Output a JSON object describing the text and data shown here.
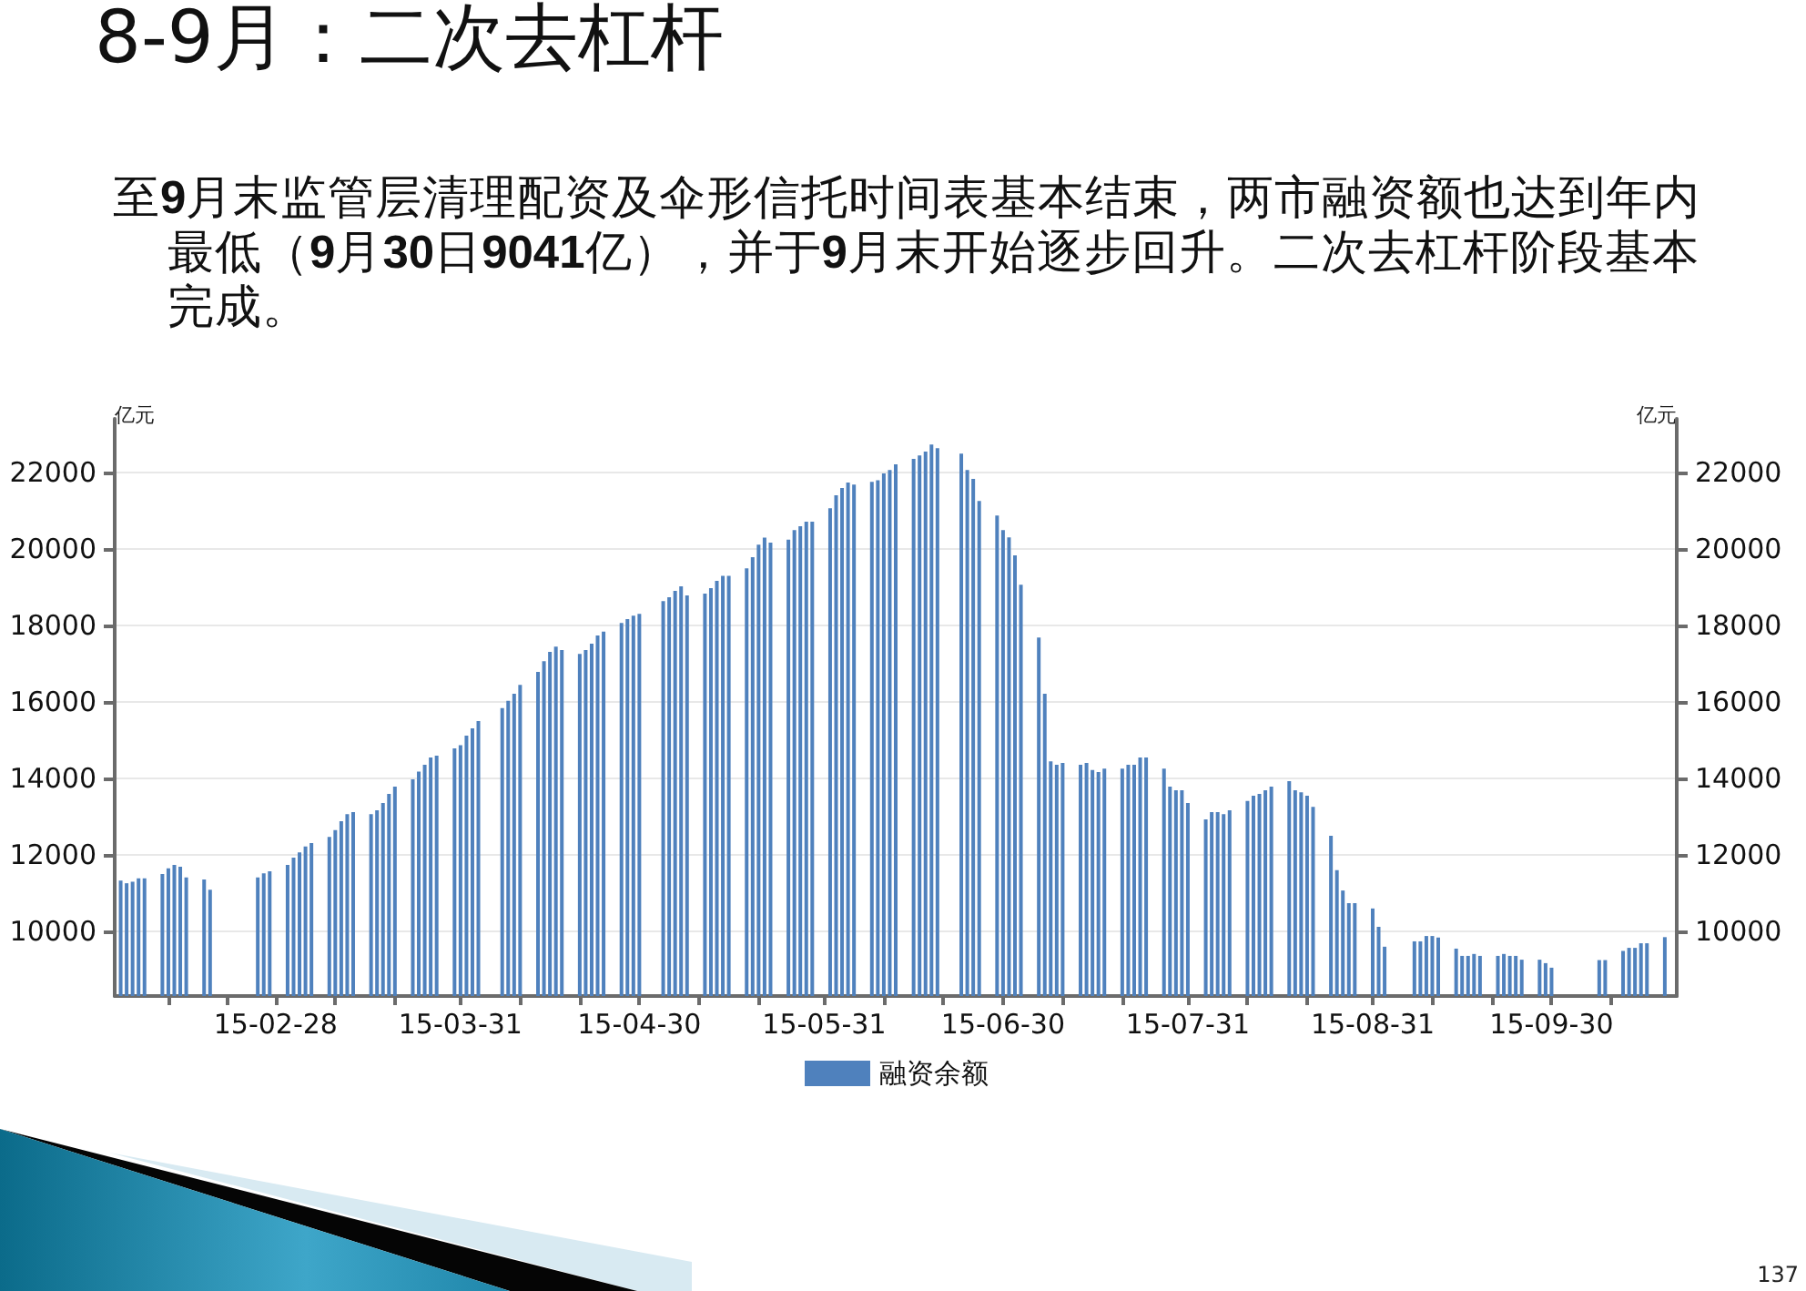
{
  "chart_data": {
    "type": "bar",
    "title": "8-9月：二次去杠杆",
    "subtitle": "至9月末监管层清理配资及伞形信托时间表基本结束，两市融资额也达到年内最低（9月30日9041亿），并于9月末开始逐步回升。二次去杠杆阶段基本完成。",
    "ylabel": "亿元",
    "y2label": "亿元",
    "annotations": [
      "137"
    ],
    "x": [
      "--02-02",
      "--02-03",
      "--02-04",
      "--02-05",
      "--02-06",
      "--02-09",
      "--02-10",
      "--02-11",
      "--02-12",
      "--02-13",
      "--02-16",
      "--02-17",
      "--02-25",
      "--02-26",
      "--02-27",
      "--03-02",
      "--03-03",
      "--03-04",
      "--03-05",
      "--03-06",
      "--03-09",
      "--03-10",
      "--03-11",
      "--03-12",
      "--03-13",
      "--03-16",
      "--03-17",
      "--03-18",
      "--03-19",
      "--03-20",
      "--03-23",
      "--03-24",
      "--03-25",
      "--03-26",
      "--03-27",
      "--03-30",
      "--03-31",
      "--04-01",
      "--04-02",
      "--04-03",
      "--04-07",
      "--04-08",
      "--04-09",
      "--04-10",
      "--04-13",
      "--04-14",
      "--04-15",
      "--04-16",
      "--04-17",
      "--04-20",
      "--04-21",
      "--04-22",
      "--04-23",
      "--04-24",
      "--04-27",
      "--04-28",
      "--04-29",
      "--04-30",
      "--05-04",
      "--05-05",
      "--05-06",
      "--05-07",
      "--05-08",
      "--05-11",
      "--05-12",
      "--05-13",
      "--05-14",
      "--05-15",
      "--05-18",
      "--05-19",
      "--05-20",
      "--05-21",
      "--05-22",
      "--05-25",
      "--05-26",
      "--05-27",
      "--05-28",
      "--05-29",
      "--06-01",
      "--06-02",
      "--06-03",
      "--06-04",
      "--06-05",
      "--06-08",
      "--06-09",
      "--06-10",
      "--06-11",
      "--06-12",
      "--06-15",
      "--06-16",
      "--06-17",
      "--06-18",
      "--06-19",
      "--06-23",
      "--06-24",
      "--06-25",
      "--06-26",
      "--06-29",
      "--06-30",
      "--07-01",
      "--07-02",
      "--07-03",
      "--07-06",
      "--07-07",
      "--07-08",
      "--07-09",
      "--07-10",
      "--07-13",
      "--07-14",
      "--07-15",
      "--07-16",
      "--07-17",
      "--07-20",
      "--07-21",
      "--07-22",
      "--07-23",
      "--07-24",
      "--07-27",
      "--07-28",
      "--07-29",
      "--07-30",
      "--07-31",
      "--08-03",
      "--08-04",
      "--08-05",
      "--08-06",
      "--08-07",
      "--08-10",
      "--08-11",
      "--08-12",
      "--08-13",
      "--08-14",
      "--08-17",
      "--08-18",
      "--08-19",
      "--08-20",
      "--08-21",
      "--08-24",
      "--08-25",
      "--08-26",
      "--08-27",
      "--08-28",
      "--08-31",
      "--09-01",
      "--09-02",
      "--09-07",
      "--09-08",
      "--09-09",
      "--09-10",
      "--09-11",
      "--09-14",
      "--09-15",
      "--09-16",
      "--09-17",
      "--09-18",
      "--09-21",
      "--09-22",
      "--09-23",
      "--09-24",
      "--09-25",
      "--09-28",
      "--09-29",
      "--09-30",
      "--10-08",
      "--10-09",
      "--10-12",
      "--10-13",
      "--10-14",
      "--10-15",
      "--10-16",
      "--10-19"
    ],
    "series": [
      {
        "name": "融资余额",
        "color": "#4f81bd",
        "values": [
          11320,
          11250,
          11290,
          11380,
          11380,
          11490,
          11640,
          11730,
          11680,
          11400,
          11350,
          11080,
          11400,
          11510,
          11560,
          11730,
          11920,
          12060,
          12210,
          12300,
          12460,
          12640,
          12870,
          13060,
          13110,
          13060,
          13160,
          13350,
          13590,
          13780,
          13970,
          14170,
          14350,
          14540,
          14590,
          14780,
          14860,
          15110,
          15300,
          15490,
          15830,
          16020,
          16210,
          16440,
          16780,
          17060,
          17300,
          17440,
          17350,
          17250,
          17350,
          17520,
          17730,
          17830,
          18060,
          18160,
          18250,
          18300,
          18630,
          18730,
          18900,
          19020,
          18780,
          18830,
          18970,
          19160,
          19290,
          19290,
          19490,
          19780,
          20110,
          20290,
          20160,
          20240,
          20490,
          20590,
          20710,
          20710,
          21060,
          21400,
          21590,
          21730,
          21680,
          21750,
          21790,
          21970,
          22060,
          22210,
          22350,
          22440,
          22540,
          22730,
          22630,
          22490,
          22060,
          21830,
          21250,
          20870,
          20490,
          20300,
          19830,
          19060,
          17680,
          16210,
          14440,
          14350,
          14400,
          14350,
          14400,
          14210,
          14160,
          14250,
          14250,
          14350,
          14350,
          14540,
          14540,
          14250,
          13780,
          13680,
          13680,
          13350,
          12920,
          13110,
          13110,
          13060,
          13160,
          13400,
          13540,
          13590,
          13680,
          13780,
          13920,
          13680,
          13630,
          13540,
          13250,
          12490,
          11590,
          11060,
          10730,
          10730,
          10590,
          10110,
          9590,
          9730,
          9730,
          9870,
          9870,
          9830,
          9540,
          9350,
          9350,
          9400,
          9350,
          9350,
          9400,
          9350,
          9350,
          9250,
          9250,
          9160,
          9041,
          9240,
          9240,
          9480,
          9560,
          9560,
          9680,
          9680,
          9840
        ]
      }
    ],
    "xlim": [
      "--02-01",
      "--10-21"
    ],
    "xticks": [
      {
        "value": "--02-10",
        "label": null
      },
      {
        "value": "--02-20",
        "label": null
      },
      {
        "value": "--02-28",
        "label": "15-02-28"
      },
      {
        "value": "--03-10",
        "label": null
      },
      {
        "value": "--03-20",
        "label": null
      },
      {
        "value": "--03-31",
        "label": "15-03-31"
      },
      {
        "value": "--04-10",
        "label": null
      },
      {
        "value": "--04-20",
        "label": null
      },
      {
        "value": "--04-30",
        "label": "15-04-30"
      },
      {
        "value": "--05-10",
        "label": null
      },
      {
        "value": "--05-20",
        "label": null
      },
      {
        "value": "--05-31",
        "label": "15-05-31"
      },
      {
        "value": "--06-10",
        "label": null
      },
      {
        "value": "--06-20",
        "label": null
      },
      {
        "value": "--06-30",
        "label": "15-06-30"
      },
      {
        "value": "--07-10",
        "label": null
      },
      {
        "value": "--07-20",
        "label": null
      },
      {
        "value": "--07-31",
        "label": "15-07-31"
      },
      {
        "value": "--08-10",
        "label": null
      },
      {
        "value": "--08-20",
        "label": null
      },
      {
        "value": "--08-31",
        "label": "15-08-31"
      },
      {
        "value": "--09-10",
        "label": null
      },
      {
        "value": "--09-20",
        "label": null
      },
      {
        "value": "--09-30",
        "label": "15-09-30"
      },
      {
        "value": "--10-10",
        "label": null
      }
    ],
    "ylim": [
      8300,
      23400
    ],
    "yticks": [
      10000,
      12000,
      14000,
      16000,
      18000,
      20000,
      22000
    ],
    "y2lim": [
      8300,
      23400
    ],
    "y2ticks": [
      10000,
      12000,
      14000,
      16000,
      18000,
      20000,
      22000
    ],
    "grid": "y",
    "legend": "bottom"
  }
}
